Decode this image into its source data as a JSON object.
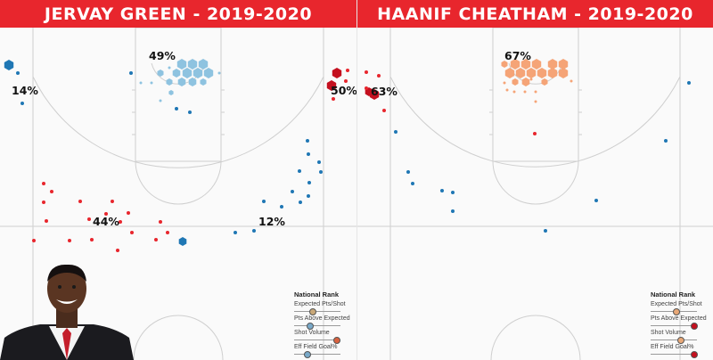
{
  "colors": {
    "header": "#e8262d",
    "made_hot": "#e8262d",
    "made_cold": "#1f77b4",
    "rim_left": "#8ec3e0",
    "rim_right": "#f5a477",
    "corner_hot": "#c4101f"
  },
  "chart_data": [
    {
      "type": "scatter",
      "title": "JERVAY GREEN - 2019-2020",
      "zone_labels": [
        "49%",
        "14%",
        "50%",
        "44%",
        "12%"
      ],
      "legend": {
        "title": "National Rank",
        "rows": [
          {
            "label": "Expected Pts/Shot",
            "level": 0.4,
            "color": "#c9a878"
          },
          {
            "label": "Pts Above Expected",
            "level": 0.35,
            "color": "#79a9c9"
          },
          {
            "label": "Shot Volume",
            "level": 0.92,
            "color": "#d9623f"
          },
          {
            "label": "Eff Field Goal%",
            "level": 0.28,
            "color": "#79a9c9"
          }
        ]
      },
      "photo": "player-headshot"
    },
    {
      "type": "scatter",
      "title": "HAANIF CHEATHAM - 2019-2020",
      "zone_labels": [
        "67%",
        "63%"
      ],
      "legend": {
        "title": "National Rank",
        "rows": [
          {
            "label": "Expected Pts/Shot",
            "level": 0.55,
            "color": "#e8a877"
          },
          {
            "label": "Pts Above Expected",
            "level": 0.95,
            "color": "#c4101f"
          },
          {
            "label": "Shot Volume",
            "level": 0.66,
            "color": "#e8a877"
          },
          {
            "label": "Eff Field Goal%",
            "level": 0.95,
            "color": "#c4101f"
          }
        ]
      }
    }
  ]
}
